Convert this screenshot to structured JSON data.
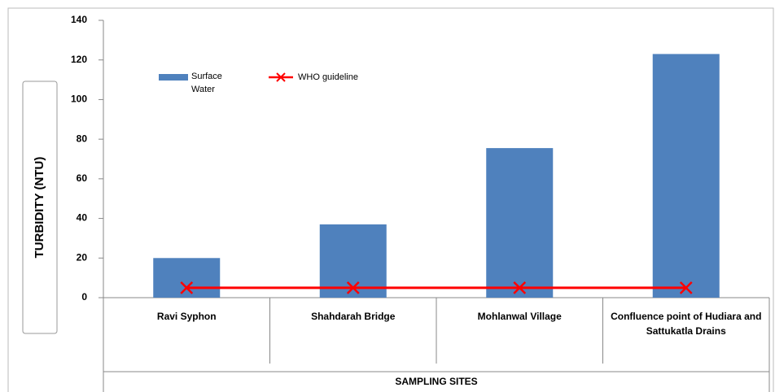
{
  "chart_data": {
    "type": "bar",
    "categories": [
      "Ravi Syphon",
      "Shahdarah Bridge",
      "Mohlanwal Village",
      "Confluence point of Hudiara and Sattukatla Drains"
    ],
    "series": [
      {
        "name": "Surface Water",
        "type": "bar",
        "color": "#4f81bd",
        "values": [
          20,
          37,
          75.5,
          123
        ]
      },
      {
        "name": "WHO guideline",
        "type": "line",
        "color": "#ff0000",
        "values": [
          5,
          5,
          5,
          5
        ]
      }
    ],
    "ylabel": "TURBIDITY (NTU)",
    "xlabel": "SAMPLING SITES",
    "ylim": [
      0,
      140
    ],
    "yticks": [
      0,
      20,
      40,
      60,
      80,
      100,
      120,
      140
    ],
    "grid": false
  }
}
